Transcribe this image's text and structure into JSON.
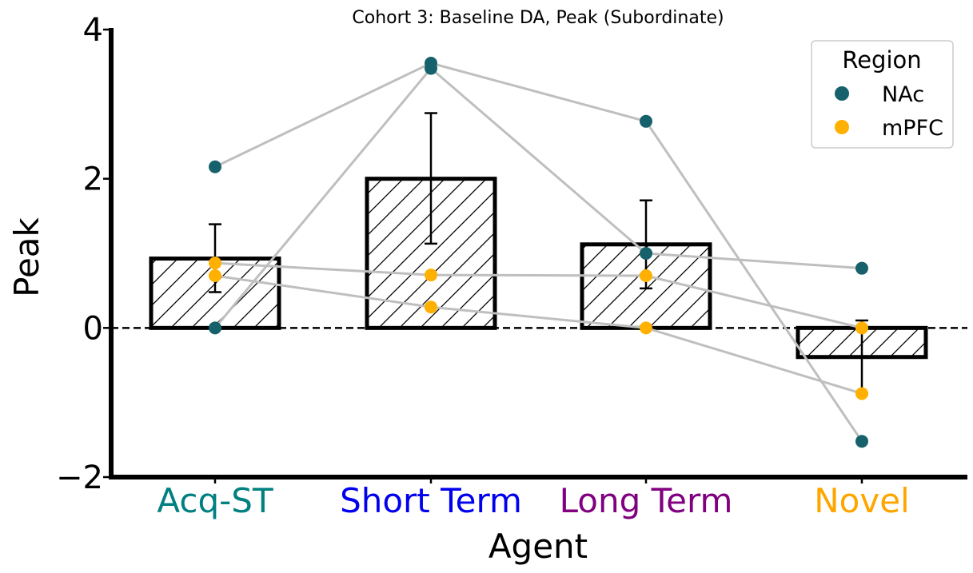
{
  "chart_data": {
    "type": "bar",
    "title": "Cohort 3: Baseline DA, Peak (Subordinate)",
    "xlabel": "Agent",
    "ylabel": "Peak",
    "ylim": [
      -2,
      4
    ],
    "yticks": [
      "-2",
      "0",
      "2",
      "4"
    ],
    "yticks_values": [
      -2,
      0,
      2,
      4
    ],
    "reference_line": 0,
    "grid": false,
    "categories": [
      "Acq-ST",
      "Short Term",
      "Long Term",
      "Novel"
    ],
    "category_colors": [
      "#008080",
      "#0000ee",
      "#800080",
      "#ffa500"
    ],
    "bar_fill": "hatched",
    "means": [
      0.93,
      2.0,
      1.12,
      -0.39
    ],
    "error_low": [
      0.48,
      1.13,
      0.53,
      -0.88
    ],
    "error_high": [
      1.39,
      2.88,
      1.71,
      0.1
    ],
    "legend": {
      "title": "Region",
      "position": "top-right",
      "entries": [
        {
          "name": "NAc",
          "color": "#16616b"
        },
        {
          "name": "mPFC",
          "color": "#ffb000"
        }
      ]
    },
    "subjects": [
      {
        "region": "NAc",
        "values": [
          2.16,
          3.55,
          2.77,
          -1.52
        ]
      },
      {
        "region": "NAc",
        "values": [
          0.0,
          3.48,
          1.0,
          0.8
        ]
      },
      {
        "region": "mPFC",
        "values": [
          0.87,
          0.71,
          0.7,
          0.0
        ]
      },
      {
        "region": "mPFC",
        "values": [
          0.7,
          0.28,
          0.0,
          -0.88
        ]
      }
    ],
    "line_color": "#bfbfbf"
  }
}
